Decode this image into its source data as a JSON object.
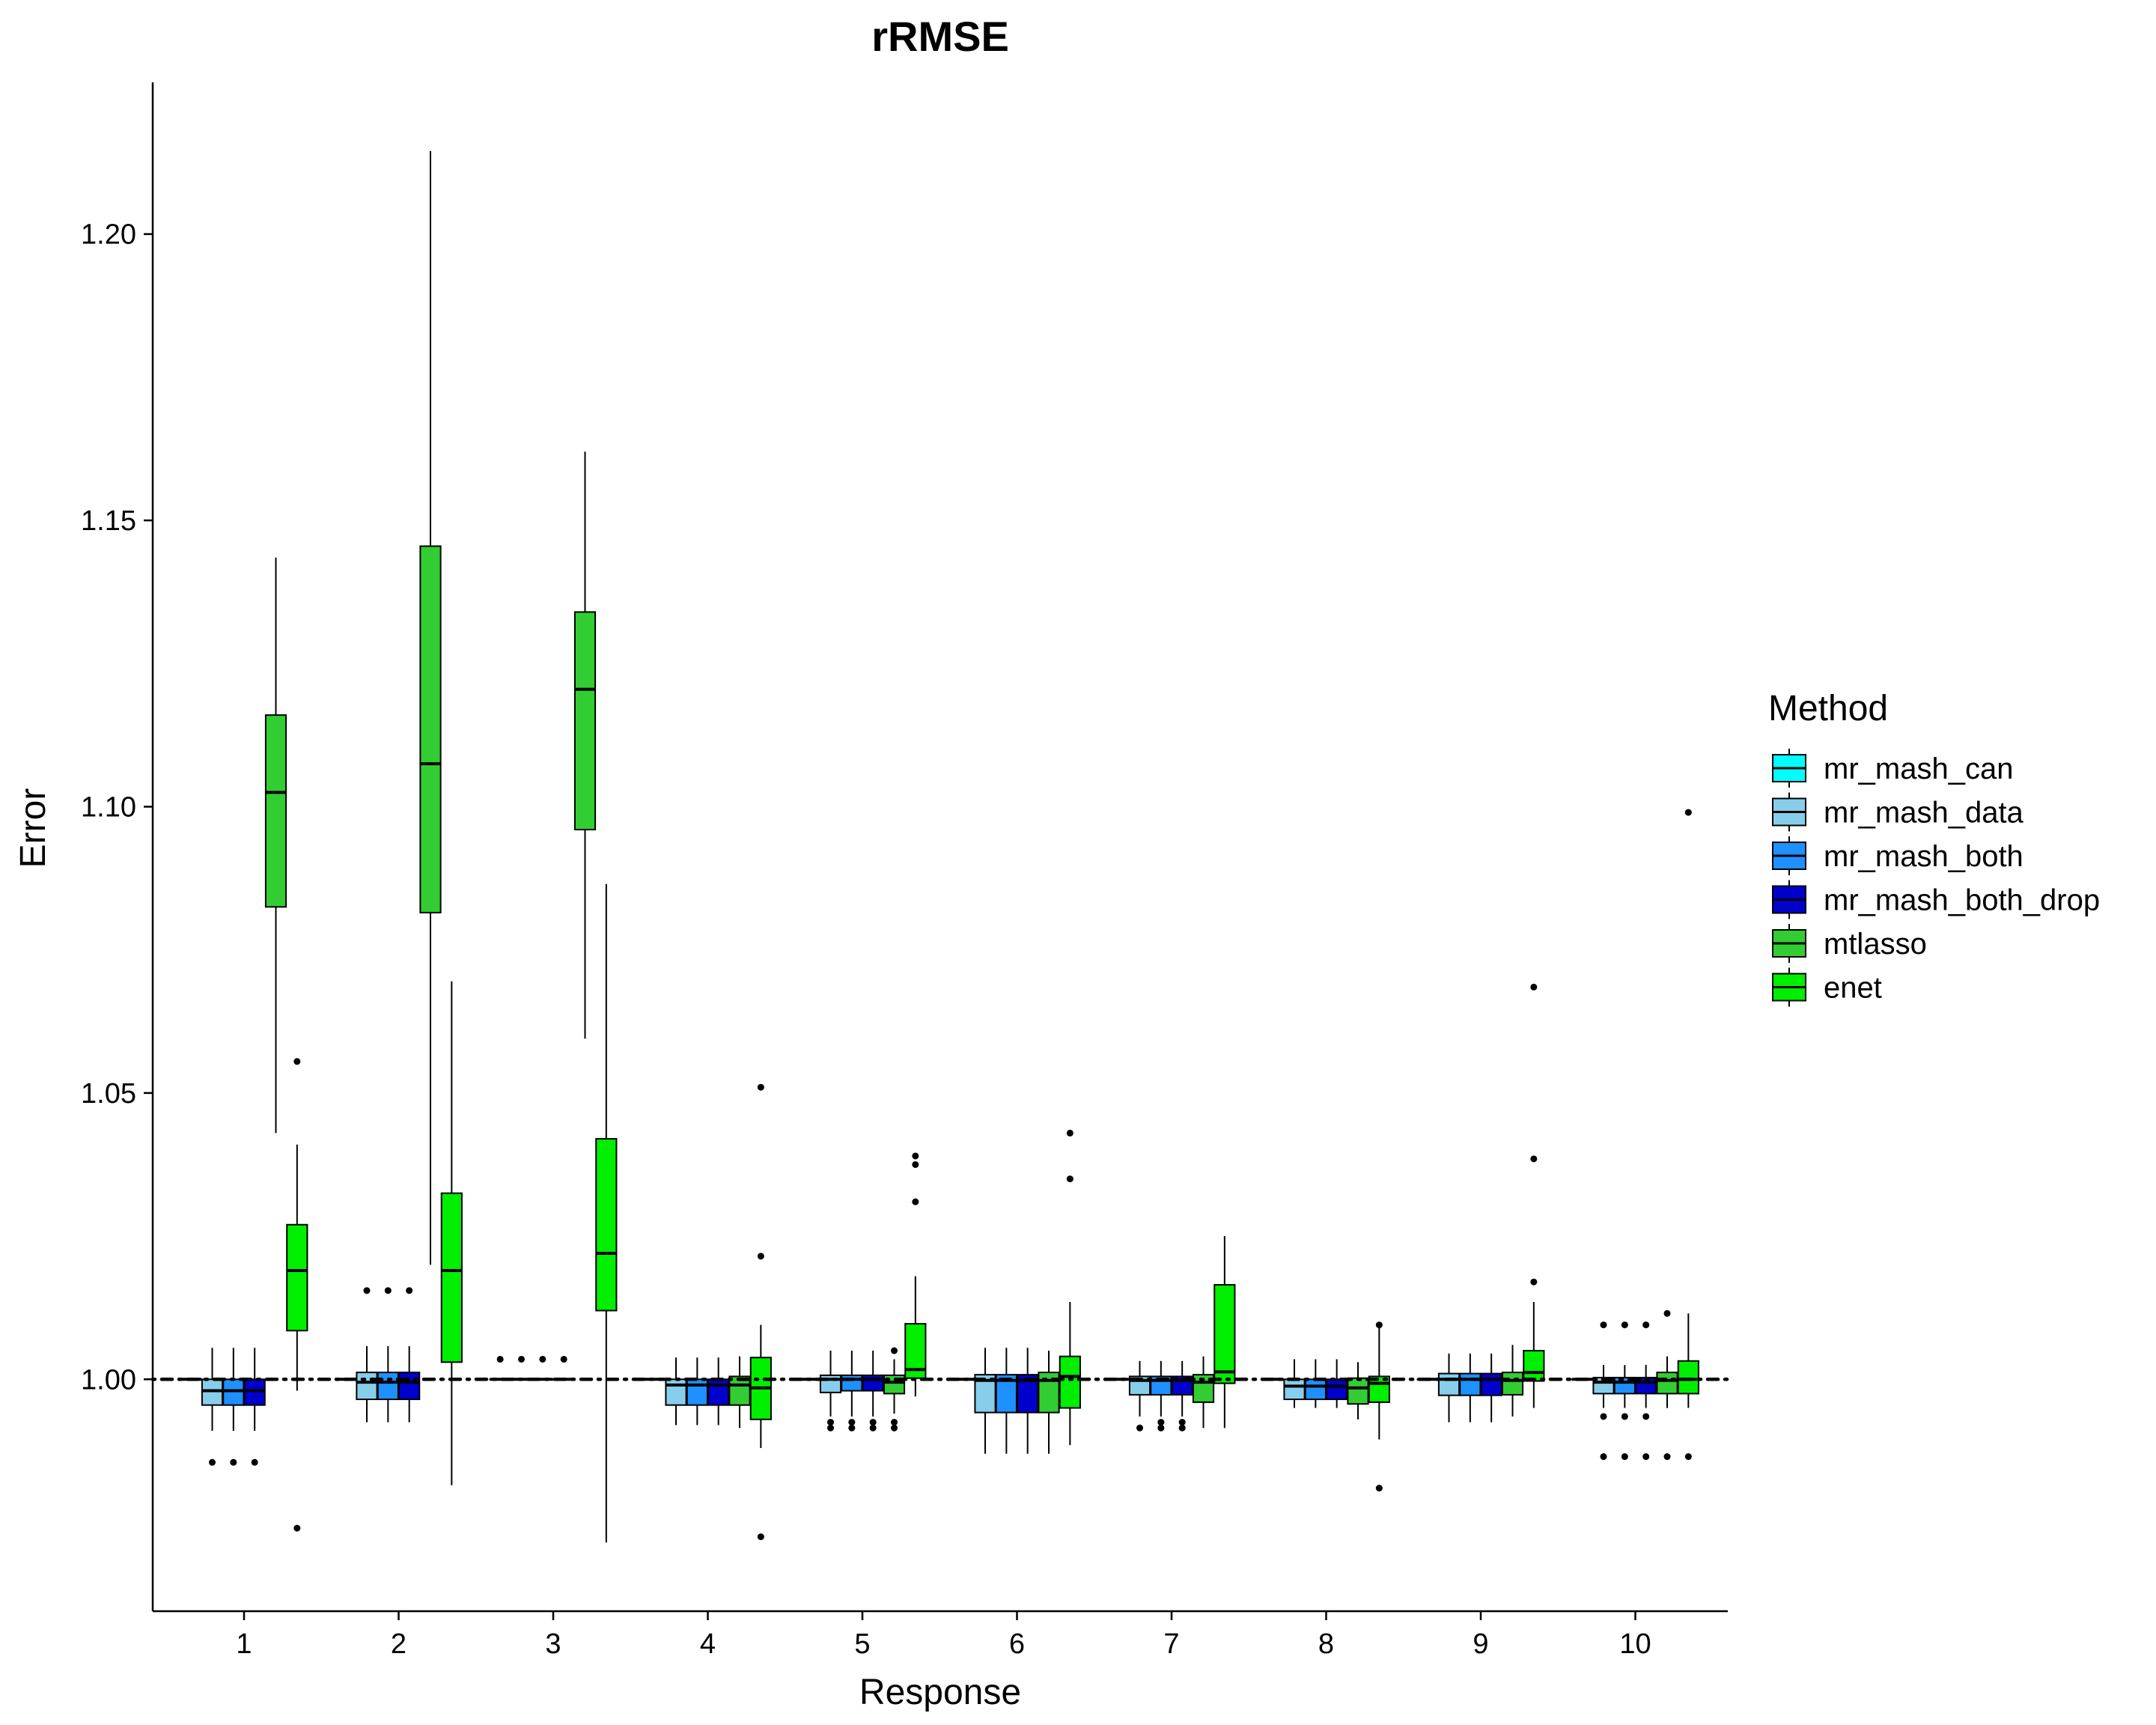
{
  "chart_data": {
    "type": "boxplot",
    "title": "rRMSE",
    "xlabel": "Response",
    "ylabel": "Error",
    "categories": [
      "1",
      "2",
      "3",
      "4",
      "5",
      "6",
      "7",
      "8",
      "9",
      "10"
    ],
    "ylim": [
      0.9595,
      1.2265
    ],
    "yticks": [
      1.0,
      1.05,
      1.1,
      1.15,
      1.2
    ],
    "ytick_labels": [
      "1.00",
      "1.05",
      "1.10",
      "1.15",
      "1.20"
    ],
    "reference_line": 1.0,
    "grid": false,
    "legend": {
      "title": "Method",
      "position": "right",
      "entries": [
        "mr_mash_can",
        "mr_mash_data",
        "mr_mash_both",
        "mr_mash_both_drop",
        "mtlasso",
        "enet"
      ]
    },
    "series": [
      {
        "name": "mr_mash_can",
        "color": "#00ffff",
        "boxes": [
          {
            "q1": 1.0,
            "med": 1.0,
            "q3": 1.0,
            "wlo": 1.0,
            "whi": 1.0,
            "out": []
          },
          {
            "q1": 1.0,
            "med": 1.0,
            "q3": 1.0,
            "wlo": 1.0,
            "whi": 1.0,
            "out": []
          },
          {
            "q1": 1.0,
            "med": 1.0,
            "q3": 1.0,
            "wlo": 1.0,
            "whi": 1.0,
            "out": [
              1.0035
            ]
          },
          {
            "q1": 1.0,
            "med": 1.0,
            "q3": 1.0,
            "wlo": 1.0,
            "whi": 1.0,
            "out": []
          },
          {
            "q1": 1.0,
            "med": 1.0,
            "q3": 1.0,
            "wlo": 1.0,
            "whi": 1.0,
            "out": []
          },
          {
            "q1": 1.0,
            "med": 1.0,
            "q3": 1.0,
            "wlo": 1.0,
            "whi": 1.0,
            "out": []
          },
          {
            "q1": 1.0,
            "med": 1.0,
            "q3": 1.0,
            "wlo": 1.0,
            "whi": 1.0,
            "out": []
          },
          {
            "q1": 1.0,
            "med": 1.0,
            "q3": 1.0,
            "wlo": 1.0,
            "whi": 1.0,
            "out": []
          },
          {
            "q1": 1.0,
            "med": 1.0,
            "q3": 1.0,
            "wlo": 1.0,
            "whi": 1.0,
            "out": []
          },
          {
            "q1": 1.0,
            "med": 1.0,
            "q3": 1.0,
            "wlo": 1.0,
            "whi": 1.0,
            "out": []
          }
        ]
      },
      {
        "name": "mr_mash_data",
        "color": "#87ceeb",
        "boxes": [
          {
            "q1": 0.9955,
            "med": 0.998,
            "q3": 1.0,
            "wlo": 0.991,
            "whi": 1.0055,
            "out": [
              0.9855
            ]
          },
          {
            "q1": 0.9965,
            "med": 0.9995,
            "q3": 1.0012,
            "wlo": 0.9925,
            "whi": 1.0058,
            "out": [
              1.0155
            ]
          },
          {
            "q1": 1.0,
            "med": 1.0,
            "q3": 1.0,
            "wlo": 1.0,
            "whi": 1.0,
            "out": [
              1.0035
            ]
          },
          {
            "q1": 0.9955,
            "med": 0.999,
            "q3": 1.0,
            "wlo": 0.992,
            "whi": 1.0038,
            "out": []
          },
          {
            "q1": 0.9977,
            "med": 1.0,
            "q3": 1.0007,
            "wlo": 0.9935,
            "whi": 1.005,
            "out": [
              0.9915,
              0.9925
            ]
          },
          {
            "q1": 0.9942,
            "med": 0.9998,
            "q3": 1.0008,
            "wlo": 0.987,
            "whi": 1.0055,
            "out": []
          },
          {
            "q1": 0.9973,
            "med": 0.9998,
            "q3": 1.0005,
            "wlo": 0.9935,
            "whi": 1.0032,
            "out": [
              0.9915
            ]
          },
          {
            "q1": 0.9965,
            "med": 0.9988,
            "q3": 1.0,
            "wlo": 0.995,
            "whi": 1.0035,
            "out": []
          },
          {
            "q1": 0.9972,
            "med": 1.0,
            "q3": 1.001,
            "wlo": 0.9925,
            "whi": 1.0045,
            "out": []
          },
          {
            "q1": 0.9975,
            "med": 0.9995,
            "q3": 1.0003,
            "wlo": 0.995,
            "whi": 1.0025,
            "out": [
              0.9935,
              0.9865,
              1.0095
            ]
          }
        ]
      },
      {
        "name": "mr_mash_both",
        "color": "#1e90ff",
        "boxes": [
          {
            "q1": 0.9955,
            "med": 0.998,
            "q3": 1.0,
            "wlo": 0.991,
            "whi": 1.0055,
            "out": [
              0.9855
            ]
          },
          {
            "q1": 0.9965,
            "med": 0.9995,
            "q3": 1.0012,
            "wlo": 0.9925,
            "whi": 1.0058,
            "out": [
              1.0155
            ]
          },
          {
            "q1": 1.0,
            "med": 1.0,
            "q3": 1.0,
            "wlo": 1.0,
            "whi": 1.0,
            "out": [
              1.0035
            ]
          },
          {
            "q1": 0.9955,
            "med": 0.999,
            "q3": 1.0,
            "wlo": 0.992,
            "whi": 1.0038,
            "out": []
          },
          {
            "q1": 0.998,
            "med": 1.0,
            "q3": 1.0007,
            "wlo": 0.9935,
            "whi": 1.005,
            "out": [
              0.9915,
              0.9925
            ]
          },
          {
            "q1": 0.9942,
            "med": 0.9998,
            "q3": 1.0008,
            "wlo": 0.987,
            "whi": 1.0055,
            "out": []
          },
          {
            "q1": 0.9973,
            "med": 0.9998,
            "q3": 1.0005,
            "wlo": 0.9935,
            "whi": 1.0032,
            "out": [
              0.9915,
              0.9925
            ]
          },
          {
            "q1": 0.9965,
            "med": 0.9988,
            "q3": 1.0,
            "wlo": 0.995,
            "whi": 1.0035,
            "out": []
          },
          {
            "q1": 0.9972,
            "med": 1.0,
            "q3": 1.001,
            "wlo": 0.9925,
            "whi": 1.0045,
            "out": []
          },
          {
            "q1": 0.9975,
            "med": 0.9995,
            "q3": 1.0003,
            "wlo": 0.995,
            "whi": 1.0025,
            "out": [
              0.9935,
              0.9865,
              1.0095
            ]
          }
        ]
      },
      {
        "name": "mr_mash_both_drop",
        "color": "#0000cd",
        "boxes": [
          {
            "q1": 0.9955,
            "med": 0.998,
            "q3": 1.0,
            "wlo": 0.991,
            "whi": 1.0055,
            "out": [
              0.9855
            ]
          },
          {
            "q1": 0.9965,
            "med": 0.9995,
            "q3": 1.0012,
            "wlo": 0.9925,
            "whi": 1.0058,
            "out": [
              1.0155
            ]
          },
          {
            "q1": 1.0,
            "med": 1.0,
            "q3": 1.0,
            "wlo": 1.0,
            "whi": 1.0,
            "out": [
              1.0035
            ]
          },
          {
            "q1": 0.9955,
            "med": 0.999,
            "q3": 1.0,
            "wlo": 0.992,
            "whi": 1.0038,
            "out": []
          },
          {
            "q1": 0.998,
            "med": 1.0,
            "q3": 1.0007,
            "wlo": 0.9935,
            "whi": 1.005,
            "out": [
              0.9915,
              0.9925
            ]
          },
          {
            "q1": 0.9942,
            "med": 0.9998,
            "q3": 1.0008,
            "wlo": 0.987,
            "whi": 1.0055,
            "out": []
          },
          {
            "q1": 0.9973,
            "med": 0.9998,
            "q3": 1.0005,
            "wlo": 0.9935,
            "whi": 1.0032,
            "out": [
              0.9915,
              0.9925
            ]
          },
          {
            "q1": 0.9965,
            "med": 0.9988,
            "q3": 1.0,
            "wlo": 0.995,
            "whi": 1.0035,
            "out": []
          },
          {
            "q1": 0.9972,
            "med": 1.0,
            "q3": 1.001,
            "wlo": 0.9925,
            "whi": 1.0045,
            "out": []
          },
          {
            "q1": 0.9975,
            "med": 0.9995,
            "q3": 1.0003,
            "wlo": 0.995,
            "whi": 1.0025,
            "out": [
              0.9935,
              0.9865,
              1.0095
            ]
          }
        ]
      },
      {
        "name": "mtlasso",
        "color": "#32cd32",
        "boxes": [
          {
            "q1": 1.0825,
            "med": 1.1025,
            "q3": 1.116,
            "wlo": 1.043,
            "whi": 1.1435,
            "out": []
          },
          {
            "q1": 1.0815,
            "med": 1.1075,
            "q3": 1.1455,
            "wlo": 1.02,
            "whi": 1.2145,
            "out": []
          },
          {
            "q1": 1.096,
            "med": 1.1205,
            "q3": 1.134,
            "wlo": 1.0595,
            "whi": 1.162,
            "out": []
          },
          {
            "q1": 0.9955,
            "med": 0.999,
            "q3": 1.0005,
            "wlo": 0.9915,
            "whi": 1.004,
            "out": []
          },
          {
            "q1": 0.9975,
            "med": 0.9995,
            "q3": 1.0007,
            "wlo": 0.994,
            "whi": 1.0035,
            "out": [
              0.9915,
              0.9925,
              1.005
            ]
          },
          {
            "q1": 0.9942,
            "med": 0.9998,
            "q3": 1.0012,
            "wlo": 0.987,
            "whi": 1.005,
            "out": []
          },
          {
            "q1": 0.996,
            "med": 0.9995,
            "q3": 1.0008,
            "wlo": 0.9915,
            "whi": 1.004,
            "out": []
          },
          {
            "q1": 0.9957,
            "med": 0.9985,
            "q3": 1.0002,
            "wlo": 0.993,
            "whi": 1.003,
            "out": []
          },
          {
            "q1": 0.9973,
            "med": 0.9998,
            "q3": 1.0012,
            "wlo": 0.9935,
            "whi": 1.006,
            "out": []
          },
          {
            "q1": 0.9975,
            "med": 0.9998,
            "q3": 1.0012,
            "wlo": 0.995,
            "whi": 1.004,
            "out": [
              0.9865,
              1.0115
            ]
          }
        ]
      },
      {
        "name": "enet",
        "color": "#00ee00",
        "boxes": [
          {
            "q1": 1.0085,
            "med": 1.019,
            "q3": 1.027,
            "wlo": 0.998,
            "whi": 1.041,
            "out": [
              0.974,
              1.0555
            ]
          },
          {
            "q1": 1.003,
            "med": 1.019,
            "q3": 1.0325,
            "wlo": 0.9815,
            "whi": 1.0695,
            "out": []
          },
          {
            "q1": 1.012,
            "med": 1.022,
            "q3": 1.042,
            "wlo": 0.9715,
            "whi": 1.0865,
            "out": []
          },
          {
            "q1": 0.993,
            "med": 0.9985,
            "q3": 1.0038,
            "wlo": 0.988,
            "whi": 1.0095,
            "out": [
              0.9725,
              1.0215,
              1.051
            ]
          },
          {
            "q1": 1.0002,
            "med": 1.0017,
            "q3": 1.0097,
            "wlo": 0.997,
            "whi": 1.018,
            "out": [
              1.031,
              1.0375,
              1.039
            ]
          },
          {
            "q1": 0.995,
            "med": 1.0005,
            "q3": 1.004,
            "wlo": 0.9885,
            "whi": 1.0135,
            "out": [
              1.035,
              1.043
            ]
          },
          {
            "q1": 0.9993,
            "med": 1.0013,
            "q3": 1.0165,
            "wlo": 0.9915,
            "whi": 1.025,
            "out": []
          },
          {
            "q1": 0.996,
            "med": 0.9993,
            "q3": 1.0005,
            "wlo": 0.9895,
            "whi": 1.009,
            "out": [
              0.981,
              1.0095
            ]
          },
          {
            "q1": 0.9997,
            "med": 1.0012,
            "q3": 1.005,
            "wlo": 0.995,
            "whi": 1.0135,
            "out": [
              1.017,
              1.0385,
              1.0685
            ]
          },
          {
            "q1": 0.9975,
            "med": 1.0,
            "q3": 1.0032,
            "wlo": 0.995,
            "whi": 1.0115,
            "out": [
              0.9865,
              1.099
            ]
          }
        ]
      }
    ]
  }
}
